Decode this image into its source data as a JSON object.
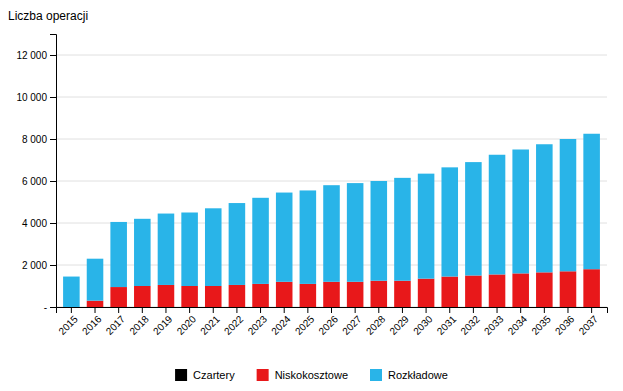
{
  "chart_data": {
    "type": "bar",
    "stacked": true,
    "y_label": "Liczba operacji",
    "categories": [
      "2015",
      "2016",
      "2017",
      "2018",
      "2019",
      "2020",
      "2021",
      "2022",
      "2023",
      "2024",
      "2025",
      "2026",
      "2027",
      "2028",
      "2029",
      "2030",
      "2031",
      "2032",
      "2033",
      "2034",
      "2035",
      "2036",
      "2037"
    ],
    "series": [
      {
        "name": "Czartery",
        "color": "#000000",
        "values": [
          0,
          0,
          0,
          0,
          0,
          0,
          0,
          0,
          0,
          0,
          0,
          0,
          0,
          0,
          0,
          0,
          0,
          0,
          0,
          0,
          0,
          0,
          0
        ]
      },
      {
        "name": "Niskokosztowe",
        "color": "#e8181a",
        "values": [
          0,
          300,
          950,
          1000,
          1050,
          1000,
          1000,
          1050,
          1100,
          1200,
          1100,
          1200,
          1200,
          1250,
          1250,
          1350,
          1450,
          1500,
          1550,
          1600,
          1650,
          1700,
          1800
        ]
      },
      {
        "name": "Rozkładowe",
        "color": "#29b4e8",
        "values": [
          1450,
          2000,
          3100,
          3200,
          3400,
          3500,
          3700,
          3900,
          4100,
          4250,
          4450,
          4600,
          4700,
          4750,
          4900,
          5000,
          5200,
          5400,
          5700,
          5900,
          6100,
          6300,
          6450
        ]
      }
    ],
    "ylim": [
      0,
      13000
    ],
    "yticks": [
      {
        "value": 0,
        "label": "-"
      },
      {
        "value": 2000,
        "label": "2 000"
      },
      {
        "value": 4000,
        "label": "4 000"
      },
      {
        "value": 6000,
        "label": "6 000"
      },
      {
        "value": 8000,
        "label": "8 000"
      },
      {
        "value": 10000,
        "label": "10 000"
      },
      {
        "value": 12000,
        "label": "12 000"
      }
    ],
    "grid": true,
    "legend": "bottom"
  }
}
